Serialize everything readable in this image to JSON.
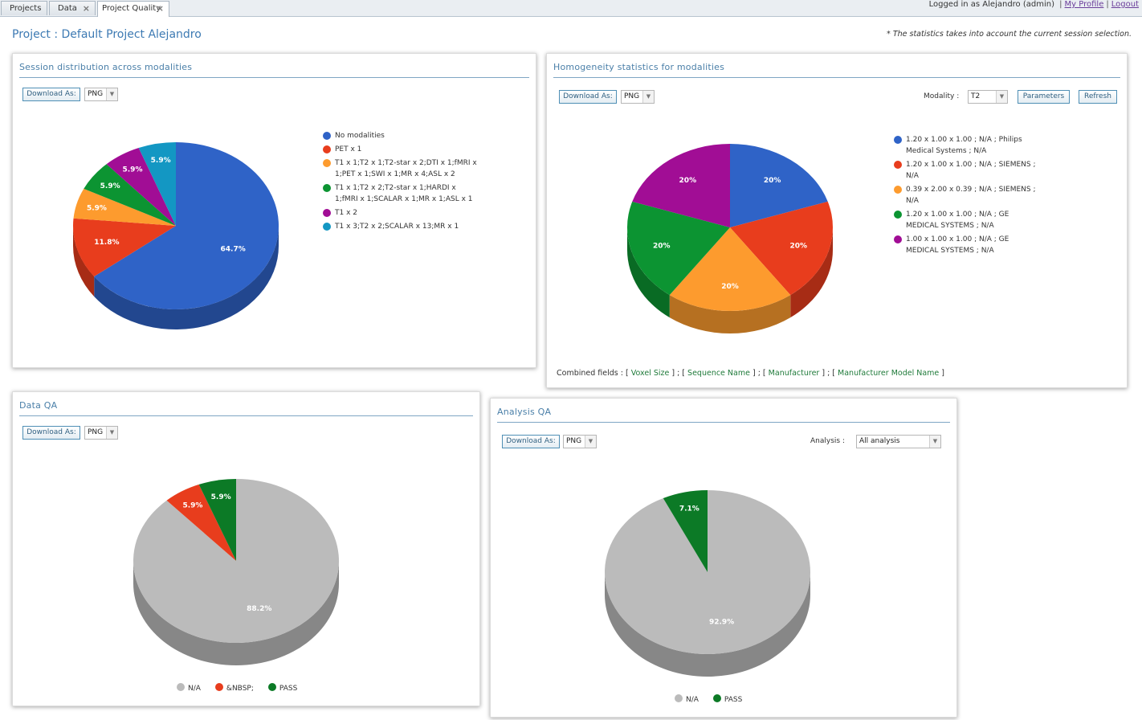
{
  "tabs": [
    {
      "label": "Projects"
    },
    {
      "label": "Data"
    },
    {
      "label": "Project Quality"
    }
  ],
  "login": {
    "prefix": "Logged in as",
    "user": "Alejandro (admin)",
    "profile": "My Profile",
    "logout": "Logout"
  },
  "page": {
    "title": "Project : Default Project Alejandro",
    "note": "* The statistics takes into account the current session selection."
  },
  "controls": {
    "download_label": "Download As:",
    "format_value": "PNG",
    "modality_label": "Modality :",
    "modality_value": "T2",
    "parameters_label": "Parameters",
    "refresh_label": "Refresh",
    "analysis_label": "Analysis :",
    "analysis_value": "All analysis"
  },
  "panels": {
    "session": {
      "title": "Session distribution across modalities"
    },
    "homogeneity": {
      "title": "Homogeneity statistics for modalities",
      "combined_prefix": "Combined fields :",
      "combined_fields": [
        "Voxel Size",
        "Sequence Name",
        "Manufacturer",
        "Manufacturer Model Name"
      ]
    },
    "data_qa": {
      "title": "Data QA"
    },
    "analysis_qa": {
      "title": "Analysis QA"
    }
  },
  "colors": {
    "accent": "#3d7ab3",
    "blue": "#2f63c7",
    "red": "#e83d1d",
    "orange": "#fd9b2e",
    "green": "#0c9432",
    "purple": "#a10d95",
    "teal": "#1397c3",
    "grey": "#bbbbbb"
  },
  "chart_data": [
    {
      "id": "session",
      "type": "pie",
      "labels": [
        "No modalities",
        "PET x 1",
        "T1 x 1;T2 x 1;T2-star x 2;DTI x 1;fMRI x 1;PET x 1;SWI x 1;MR x 4;ASL x 2",
        "T1 x 1;T2 x 2;T2-star x 1;HARDI x 1;fMRI x 1;SCALAR x 1;MR x 1;ASL x 1",
        "T1 x 2",
        "T1 x 3;T2 x 2;SCALAR x 13;MR x 1"
      ],
      "values": [
        64.7,
        11.8,
        5.9,
        5.9,
        5.9,
        5.9
      ],
      "data_labels": [
        "64.7%",
        "11.8%",
        "5.9%",
        "5.9%",
        "5.9%",
        "5.9%"
      ],
      "colors": [
        "#2f63c7",
        "#e83d1d",
        "#fd9b2e",
        "#0c9432",
        "#a10d95",
        "#1397c3"
      ],
      "legend": "right"
    },
    {
      "id": "homogeneity",
      "type": "pie",
      "labels": [
        "1.20 x 1.00 x 1.00 ; N/A ; Philips Medical Systems ; N/A",
        "1.20 x 1.00 x 1.00 ; N/A ; SIEMENS ; N/A",
        "0.39 x 2.00 x 0.39 ; N/A ; SIEMENS ; N/A",
        "1.20 x 1.00 x 1.00 ; N/A ; GE MEDICAL SYSTEMS ; N/A",
        "1.00 x 1.00 x 1.00 ; N/A ; GE MEDICAL SYSTEMS ; N/A"
      ],
      "values": [
        20,
        20,
        20,
        20,
        20
      ],
      "data_labels": [
        "20%",
        "20%",
        "20%",
        "20%",
        "20%"
      ],
      "colors": [
        "#2f63c7",
        "#e83d1d",
        "#fd9b2e",
        "#0c9432",
        "#a10d95"
      ],
      "legend": "right"
    },
    {
      "id": "data_qa",
      "type": "pie",
      "labels": [
        "N/A",
        "&NBSP;",
        "PASS"
      ],
      "values": [
        88.2,
        5.9,
        5.9
      ],
      "data_labels": [
        "88.2%",
        "5.9%",
        "5.9%"
      ],
      "colors": [
        "#bbbbbb",
        "#e83d1d",
        "#0c7a26"
      ],
      "legend": "bottom"
    },
    {
      "id": "analysis_qa",
      "type": "pie",
      "labels": [
        "N/A",
        "PASS"
      ],
      "values": [
        92.9,
        7.1
      ],
      "data_labels": [
        "92.9%",
        "7.1%"
      ],
      "colors": [
        "#bbbbbb",
        "#0c7a26"
      ],
      "legend": "bottom"
    }
  ]
}
